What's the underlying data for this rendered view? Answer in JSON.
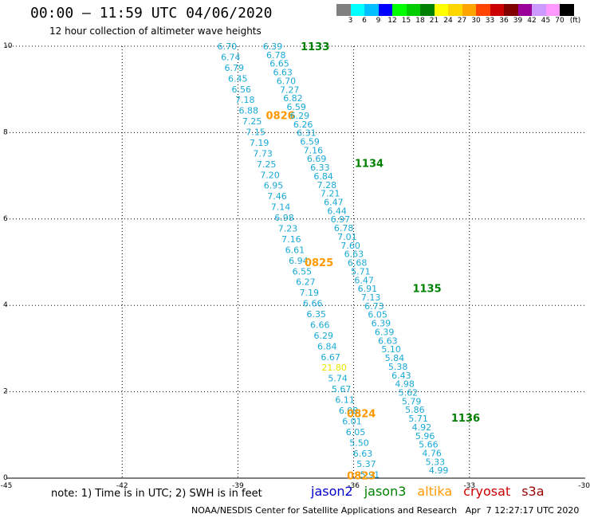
{
  "header": {
    "title": "00:00 – 11:59 UTC 04/06/2020",
    "subtitle": "12 hour collection of altimeter wave heights"
  },
  "colorbar": {
    "unit_label": "(ft)",
    "colors": [
      "#808080",
      "#00ffff",
      "#00bfff",
      "#0000ff",
      "#00ff00",
      "#00cc00",
      "#008000",
      "#ffff00",
      "#ffd700",
      "#ffa500",
      "#ff4500",
      "#cc0000",
      "#800000",
      "#990099",
      "#cc99ff",
      "#ff99ff",
      "#000000"
    ],
    "labels": [
      "3",
      "6",
      "9",
      "12",
      "15",
      "18",
      "21",
      "24",
      "27",
      "30",
      "33",
      "36",
      "39",
      "42",
      "45",
      "70"
    ]
  },
  "legend": [
    {
      "label": "jason2",
      "color": "#0000cc"
    },
    {
      "label": "jason3",
      "color": "#008000"
    },
    {
      "label": "altika",
      "color": "#ff9900"
    },
    {
      "label": "cryosat",
      "color": "#cc0000"
    },
    {
      "label": "s3a",
      "color": "#990000"
    }
  ],
  "note": "note: 1) Time is in UTC; 2) SWH is in feet",
  "credit": "NOAA/NESDIS Center for Satellite Applications and Research   Apr  7 12:27:17 UTC 2020",
  "chart_data": {
    "type": "scatter",
    "xlim": [
      -45,
      -30
    ],
    "ylim": [
      0,
      10
    ],
    "x_ticks": [
      -45,
      -42,
      -39,
      -36,
      -33,
      -30
    ],
    "y_ticks": [
      0,
      2,
      4,
      6,
      8,
      10
    ],
    "grid": true,
    "track_a": {
      "satellite": "altika",
      "color": "#1aa9d6",
      "x_start": -39.28,
      "y_start": 10.0,
      "x_end": -35.58,
      "y_end": 0.08,
      "values": [
        "6.70",
        "6.74",
        "6.79",
        "6.45",
        "6.56",
        "7.18",
        "6.88",
        "7.25",
        "7.15",
        "7.19",
        "7.73",
        "7.25",
        "7.20",
        "6.95",
        "7.46",
        "7.14",
        "6.98",
        "7.23",
        "7.16",
        "6.61",
        "6.94",
        "6.55",
        "6.27",
        "7.19",
        "6.66",
        "6.35",
        "6.66",
        "6.29",
        "6.84",
        "6.67",
        "21.80",
        "5.74",
        "5.67",
        "6.11",
        "6.08",
        "6.01",
        "6.05",
        "5.50",
        "6.63",
        "5.37",
        "5.91"
      ],
      "special": {
        "index": 30,
        "color": "#e6e600"
      },
      "time_labels": [
        {
          "text": "0826",
          "x": -37.9,
          "y": 8.4
        },
        {
          "text": "0825",
          "x": -36.9,
          "y": 5.0
        },
        {
          "text": "0824",
          "x": -35.8,
          "y": 1.5
        },
        {
          "text": "0823",
          "x": -35.8,
          "y": 0.06
        }
      ]
    },
    "track_b": {
      "satellite": "jason3",
      "color": "#1aa9d6",
      "x_start": -38.1,
      "y_start": 10.0,
      "x_end": -33.8,
      "y_end": 0.18,
      "values": [
        "6.39",
        "6.78",
        "6.65",
        "6.63",
        "6.70",
        "7.27",
        "6.82",
        "6.59",
        "6.29",
        "6.26",
        "6.31",
        "6.59",
        "7.16",
        "6.69",
        "6.33",
        "6.84",
        "7.28",
        "7.21",
        "6.47",
        "6.44",
        "6.97",
        "6.78",
        "7.01",
        "7.60",
        "6.63",
        "6.68",
        "5.71",
        "6.47",
        "6.91",
        "7.13",
        "6.73",
        "6.05",
        "6.39",
        "6.39",
        "6.63",
        "5.10",
        "5.84",
        "5.38",
        "6.43",
        "4.98",
        "5.62",
        "5.79",
        "5.86",
        "5.71",
        "4.92",
        "5.96",
        "5.66",
        "4.76",
        "5.33",
        "4.99"
      ],
      "time_labels": [
        {
          "text": "1133",
          "x": -37.0,
          "y": 10.0
        },
        {
          "text": "1134",
          "x": -35.6,
          "y": 7.3
        },
        {
          "text": "1135",
          "x": -34.1,
          "y": 4.4
        },
        {
          "text": "1136",
          "x": -33.1,
          "y": 1.4
        }
      ]
    }
  }
}
